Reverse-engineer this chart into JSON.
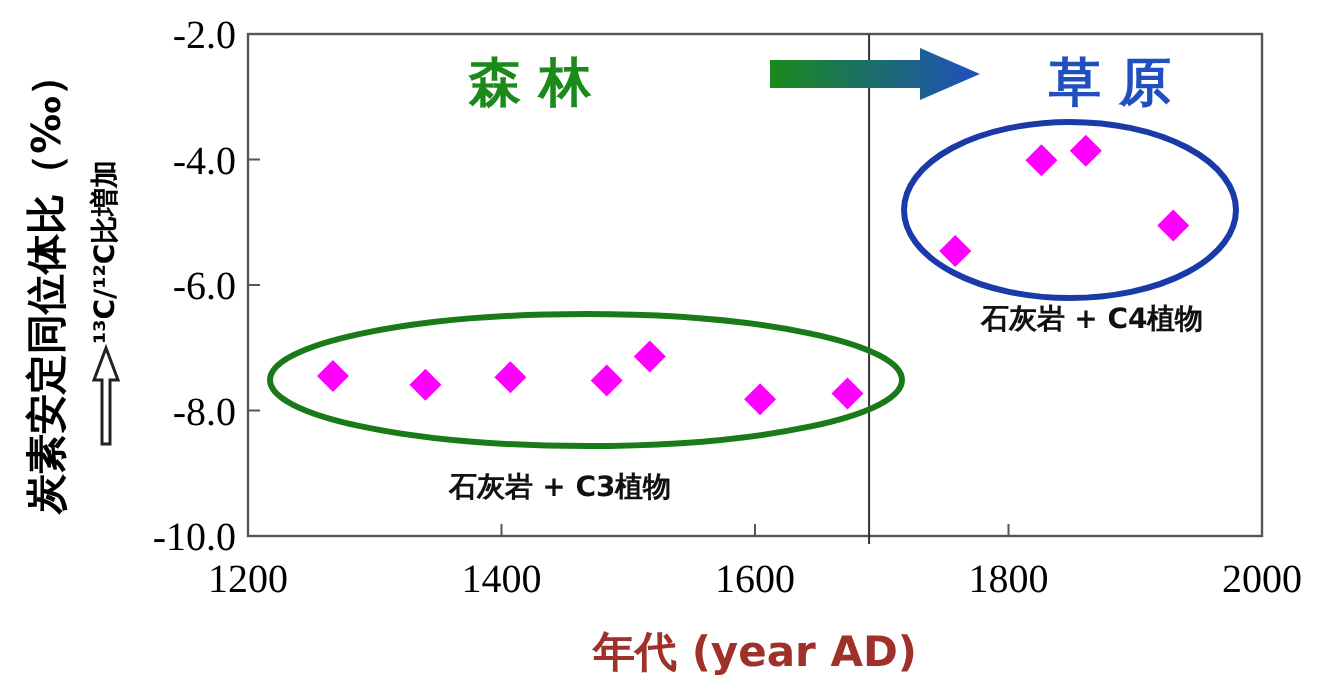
{
  "chart_data": {
    "type": "scatter",
    "xlabel": "年代 (year AD)",
    "ylabel": "炭素安定同位体比（‰）",
    "x": [
      1267,
      1340,
      1407,
      1483,
      1517,
      1604,
      1673,
      1758,
      1826,
      1861,
      1930
    ],
    "series": [
      {
        "color": "#ff00ff",
        "values": [
          -7.45,
          -7.59,
          -7.47,
          -7.52,
          -7.14,
          -7.82,
          -7.73,
          -5.46,
          -4.01,
          -3.86,
          -5.05
        ]
      }
    ],
    "xlim": [
      1200,
      2000
    ],
    "xticks": [
      1200,
      1400,
      1600,
      1800,
      2000
    ],
    "ylim": [
      -10,
      -2
    ],
    "yticks": [
      {
        "value": -10,
        "label": "-10.0"
      },
      {
        "value": -8,
        "label": "-8.0"
      },
      {
        "value": -6,
        "label": "-6.0"
      },
      {
        "value": -4,
        "label": "-4.0"
      },
      {
        "value": -2,
        "label": "-2.0"
      }
    ],
    "ref_lines": [
      {
        "axis": "x",
        "value": 1690,
        "color": "#333333"
      }
    ],
    "annotations": [
      "森 林",
      "草 原",
      "石灰岩 + C3植物",
      "石灰岩 + C4植物",
      "¹³C/¹²C比増加"
    ],
    "marker": "diamond",
    "grid": false
  }
}
